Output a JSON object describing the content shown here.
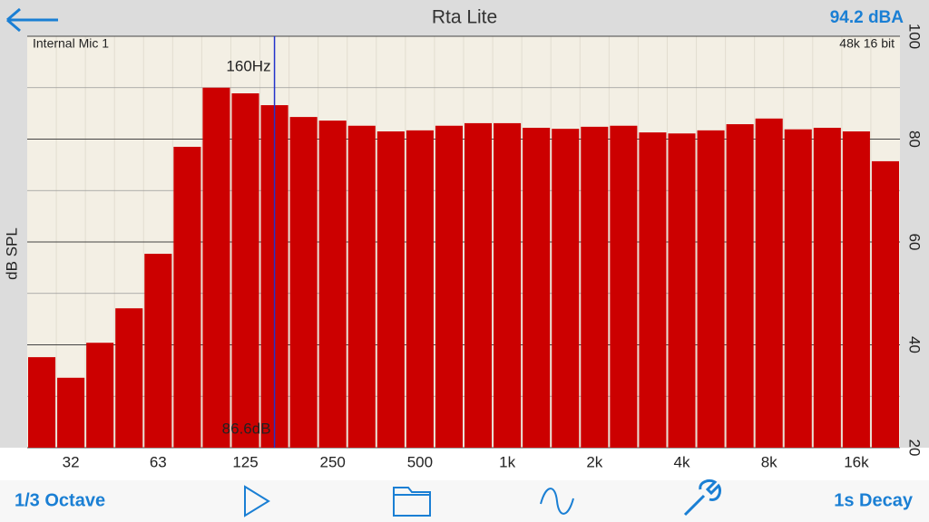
{
  "header": {
    "title": "Rta Lite",
    "level": "94.2 dBA",
    "input": "Internal Mic 1",
    "format": "48k 16 bit"
  },
  "chart_data": {
    "type": "bar",
    "y_label": "dB SPL",
    "categories": [
      null,
      "32",
      null,
      null,
      "63",
      null,
      null,
      "125",
      null,
      null,
      "250",
      null,
      null,
      "500",
      null,
      null,
      "1k",
      null,
      null,
      "2k",
      null,
      null,
      "4k",
      null,
      null,
      "8k",
      null,
      null,
      "16k",
      null
    ],
    "values": [
      37.6,
      33.6,
      40.4,
      47.1,
      57.7,
      78.5,
      90.0,
      88.9,
      86.6,
      84.3,
      83.6,
      82.6,
      81.5,
      81.7,
      82.6,
      83.1,
      83.1,
      82.2,
      82.0,
      82.4,
      82.6,
      81.3,
      81.1,
      81.7,
      82.9,
      84.0,
      81.9,
      82.2,
      81.5,
      75.7
    ],
    "value_labels": [
      null,
      null,
      null,
      null,
      null,
      null,
      null,
      null,
      "86.6dB",
      null,
      null,
      null,
      null,
      null,
      null,
      null,
      null,
      null,
      null,
      null,
      null,
      null,
      null,
      null,
      null,
      null,
      null,
      null,
      null,
      null
    ],
    "cursor_label": "160Hz",
    "color": "#cc0000",
    "ylim": [
      20,
      100
    ],
    "yticks": [
      20,
      40,
      60,
      80,
      100
    ],
    "grid": true
  },
  "footer": {
    "left": "1/3 Octave",
    "right": "1s Decay"
  }
}
